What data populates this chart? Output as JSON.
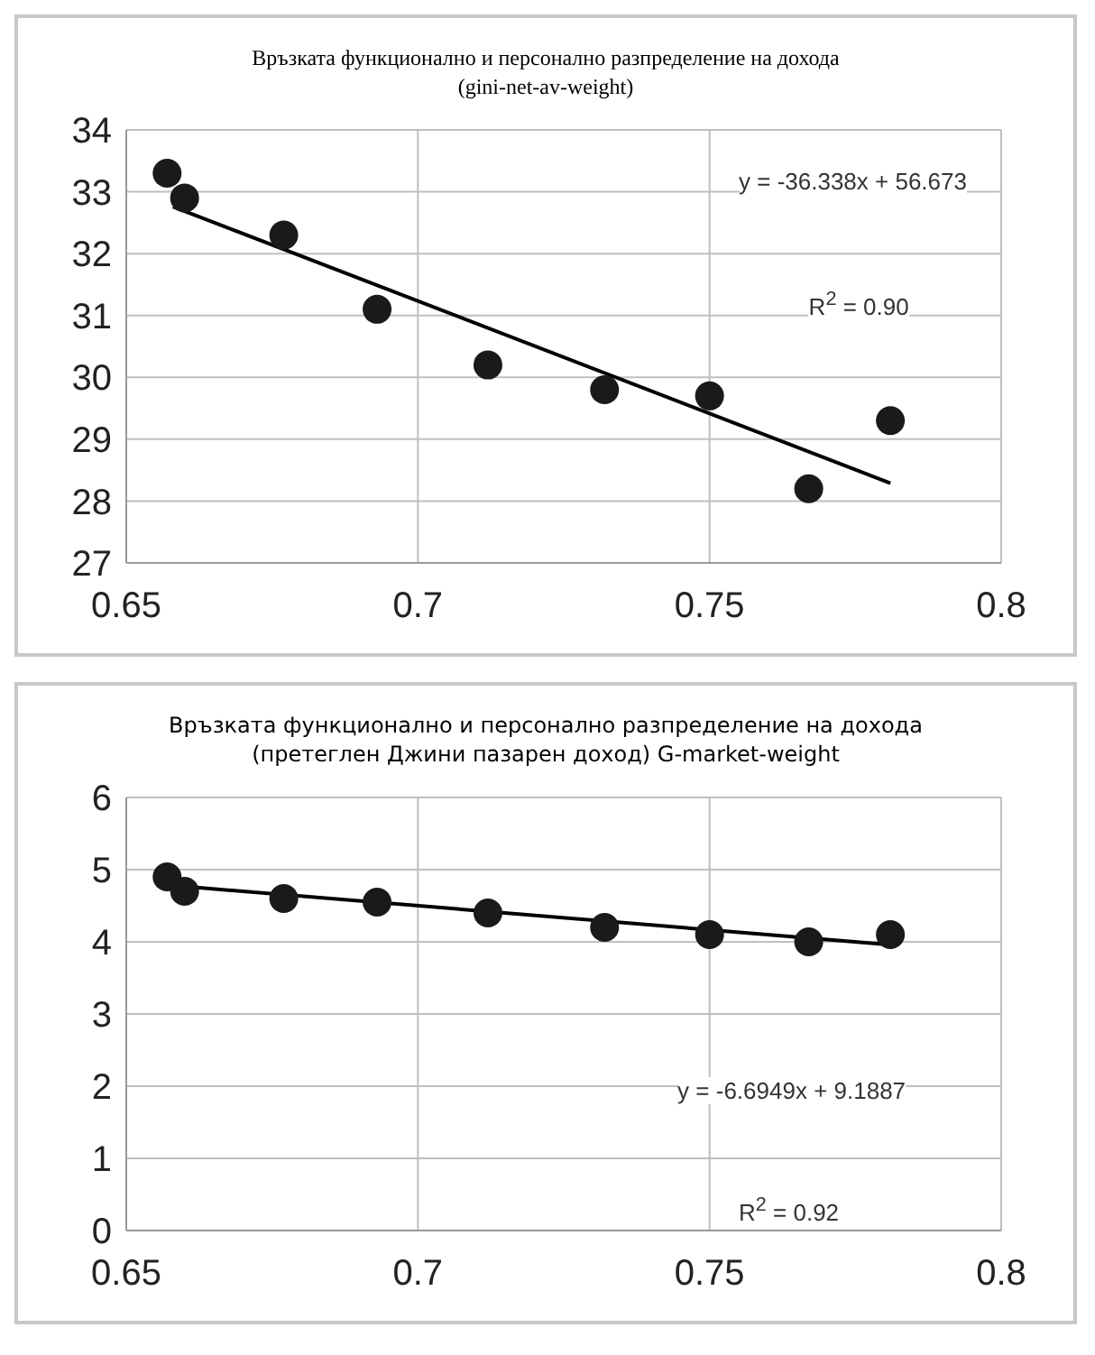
{
  "chart_data": [
    {
      "type": "scatter",
      "title": "Връзката функционално и персонално разпределение на дохода",
      "subtitle": "(gini-net-av-weight)",
      "xlim": [
        0.65,
        0.8
      ],
      "xticks": [
        0.65,
        0.7,
        0.75,
        0.8
      ],
      "ylim": [
        27,
        34
      ],
      "yticks": [
        27,
        28,
        29,
        30,
        31,
        32,
        33,
        34
      ],
      "grid": true,
      "marker": "circle",
      "annotations": [
        "y = -36.338x + 56.673",
        "R$^{2}$ = 0.90"
      ],
      "series": [
        {
          "color": "#1a1a1a",
          "x": [
            0.657,
            0.66,
            0.677,
            0.693,
            0.712,
            0.732,
            0.75,
            0.767,
            0.781
          ],
          "values": [
            33.3,
            32.9,
            32.3,
            31.1,
            30.2,
            29.8,
            29.7,
            28.2,
            29.3
          ]
        },
        {
          "type": "line",
          "color": "#000000",
          "marker": "none",
          "x": [
            0.658,
            0.781
          ],
          "values": [
            32.76,
            28.29
          ]
        }
      ]
    },
    {
      "type": "scatter",
      "title": "Връзката  функционално и персонално разпределение  на дохода  (претеглен Джини пазарен доход)  G-market-weight",
      "xlim": [
        0.65,
        0.8
      ],
      "xticks": [
        0.65,
        0.7,
        0.75,
        0.8
      ],
      "ylim": [
        0,
        6
      ],
      "yticks": [
        0,
        1,
        2,
        3,
        4,
        5,
        6
      ],
      "grid": true,
      "marker": "circle",
      "annotations": [
        "y = -6.6949x + 9.1887",
        "R$^{2}$ = 0.92"
      ],
      "series": [
        {
          "color": "#1a1a1a",
          "x": [
            0.657,
            0.66,
            0.677,
            0.693,
            0.712,
            0.732,
            0.75,
            0.767,
            0.781
          ],
          "values": [
            4.9,
            4.7,
            4.6,
            4.55,
            4.4,
            4.2,
            4.1,
            4.0,
            4.1
          ]
        },
        {
          "type": "line",
          "color": "#000000",
          "marker": "none",
          "x": [
            0.658,
            0.781
          ],
          "values": [
            4.78,
            3.96
          ]
        }
      ]
    }
  ]
}
